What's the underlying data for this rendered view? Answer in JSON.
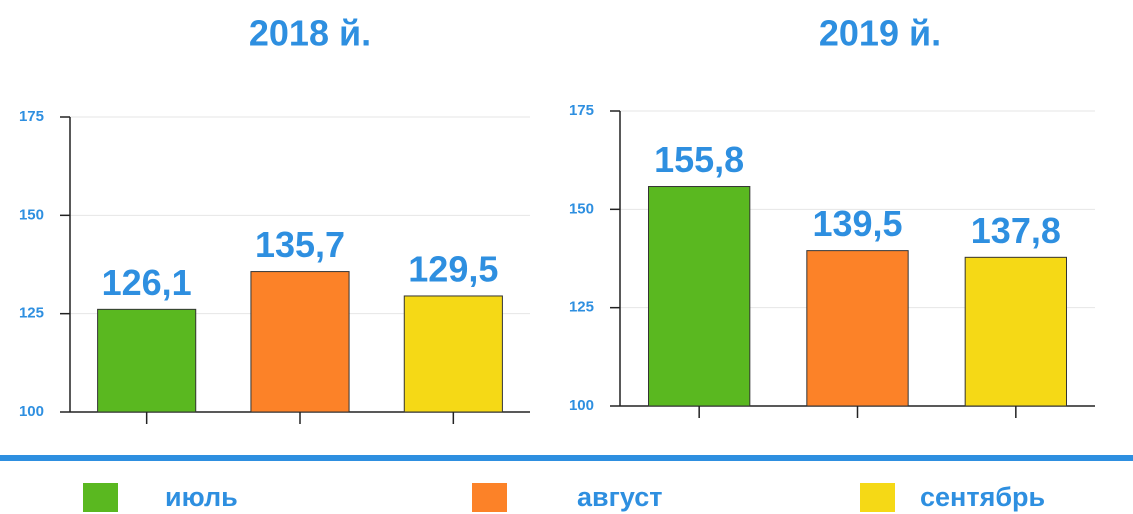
{
  "chart_data": [
    {
      "type": "bar",
      "title": "2018 й.",
      "values": [
        126.1,
        135.7,
        129.5
      ],
      "value_labels": [
        "126,1",
        "135,7",
        "129,5"
      ],
      "ylim": [
        100,
        175
      ],
      "yticks": [
        100,
        125,
        150,
        175
      ],
      "grid": true
    },
    {
      "type": "bar",
      "title": "2019 й.",
      "values": [
        155.8,
        139.5,
        137.8
      ],
      "value_labels": [
        "155,8",
        "139,5",
        "137,8"
      ],
      "ylim": [
        100,
        175
      ],
      "yticks": [
        100,
        125,
        150,
        175
      ],
      "grid": true
    }
  ],
  "legend": {
    "items": [
      {
        "name": "июль",
        "color": "#5ab820"
      },
      {
        "name": "август",
        "color": "#fc8228"
      },
      {
        "name": "сентябрь",
        "color": "#f5d916"
      }
    ]
  }
}
